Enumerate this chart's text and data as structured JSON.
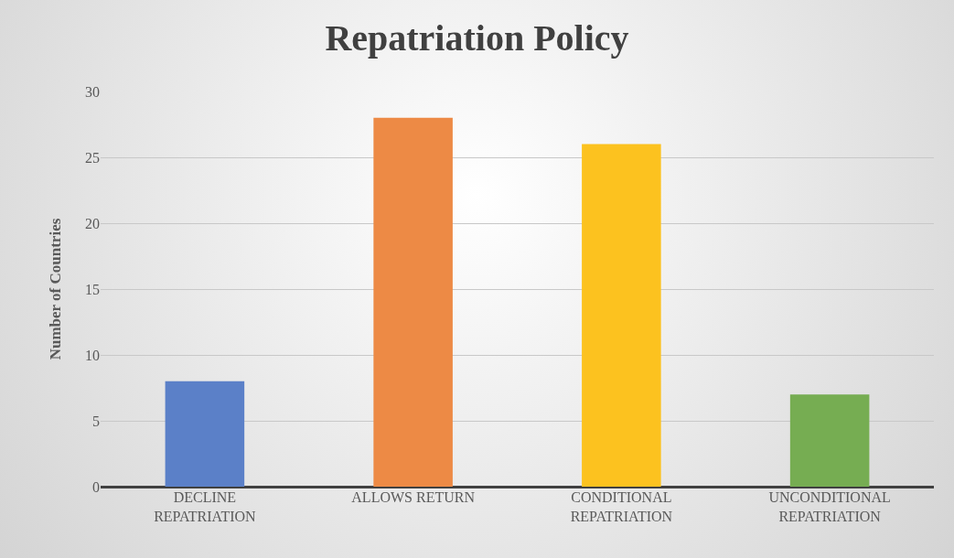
{
  "chart_data": {
    "type": "bar",
    "title": "Repatriation Policy",
    "ylabel": "Number of Countries",
    "categories": [
      "DECLINE REPATRIATION",
      "ALLOWS RETURN",
      "CONDITIONAL REPATRIATION",
      "UNCONDITIONAL REPATRIATION"
    ],
    "values": [
      8,
      28,
      26,
      7
    ],
    "colors": [
      "#5b80c8",
      "#ed8a45",
      "#fcc21f",
      "#76ad52"
    ],
    "ylim": [
      0,
      30
    ],
    "yticks": [
      0,
      5,
      10,
      15,
      20,
      25,
      30
    ],
    "grid": "y"
  }
}
